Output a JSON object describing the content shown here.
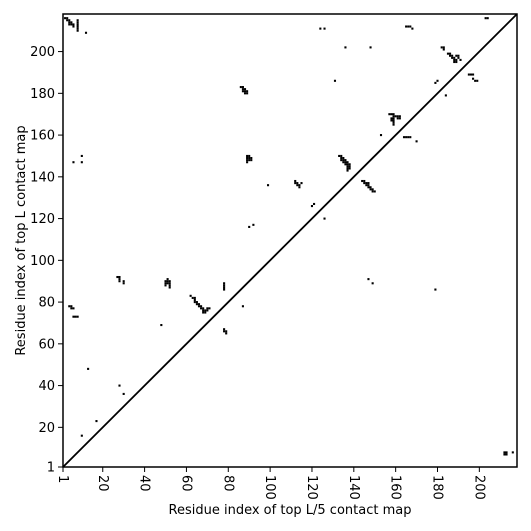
{
  "chart_data": {
    "type": "heatmap",
    "xlabel": "Residue index of top L/5 contact map",
    "ylabel": "Residue index of top L contact map",
    "xlim": [
      1,
      218
    ],
    "ylim": [
      1,
      218
    ],
    "xticks": [
      1,
      20,
      40,
      60,
      80,
      100,
      120,
      140,
      160,
      180,
      200
    ],
    "yticks": [
      1,
      20,
      40,
      60,
      80,
      100,
      120,
      140,
      160,
      180,
      200
    ],
    "grid": false,
    "diagonal": true,
    "colors": {
      "contact": "#000000",
      "background": "#ffffff"
    },
    "contacts": [
      [
        2,
        216
      ],
      [
        3,
        216
      ],
      [
        3,
        215
      ],
      [
        4,
        215
      ],
      [
        4,
        214
      ],
      [
        5,
        214
      ],
      [
        5,
        213
      ],
      [
        6,
        213
      ],
      [
        6,
        212
      ],
      [
        4,
        213
      ],
      [
        8,
        215
      ],
      [
        8,
        214
      ],
      [
        8,
        213
      ],
      [
        8,
        212
      ],
      [
        8,
        211
      ],
      [
        8,
        210
      ],
      [
        12,
        209
      ],
      [
        6,
        147
      ],
      [
        10,
        147
      ],
      [
        10,
        150
      ],
      [
        4,
        78
      ],
      [
        5,
        78
      ],
      [
        5,
        77
      ],
      [
        6,
        77
      ],
      [
        6,
        73
      ],
      [
        7,
        73
      ],
      [
        8,
        73
      ],
      [
        10,
        16
      ],
      [
        13,
        48
      ],
      [
        17,
        23
      ],
      [
        27,
        92
      ],
      [
        28,
        92
      ],
      [
        28,
        91
      ],
      [
        28,
        90
      ],
      [
        30,
        90
      ],
      [
        30,
        89
      ],
      [
        28,
        40
      ],
      [
        30,
        36
      ],
      [
        48,
        69
      ],
      [
        50,
        90
      ],
      [
        50,
        89
      ],
      [
        50,
        88
      ],
      [
        51,
        91
      ],
      [
        51,
        90
      ],
      [
        51,
        89
      ],
      [
        52,
        90
      ],
      [
        52,
        89
      ],
      [
        52,
        88
      ],
      [
        52,
        87
      ],
      [
        62,
        83
      ],
      [
        63,
        82
      ],
      [
        64,
        82
      ],
      [
        64,
        81
      ],
      [
        64,
        80
      ],
      [
        65,
        80
      ],
      [
        65,
        79
      ],
      [
        66,
        79
      ],
      [
        66,
        78
      ],
      [
        67,
        78
      ],
      [
        67,
        77
      ],
      [
        68,
        77
      ],
      [
        68,
        76
      ],
      [
        69,
        76
      ],
      [
        69,
        75
      ],
      [
        70,
        77
      ],
      [
        70,
        76
      ],
      [
        71,
        77
      ],
      [
        68,
        75
      ],
      [
        78,
        89
      ],
      [
        78,
        88
      ],
      [
        78,
        87
      ],
      [
        78,
        86
      ],
      [
        78,
        67
      ],
      [
        78,
        66
      ],
      [
        79,
        66
      ],
      [
        79,
        65
      ],
      [
        87,
        78
      ],
      [
        86,
        183
      ],
      [
        87,
        183
      ],
      [
        87,
        182
      ],
      [
        87,
        181
      ],
      [
        88,
        182
      ],
      [
        88,
        181
      ],
      [
        88,
        180
      ],
      [
        89,
        181
      ],
      [
        89,
        180
      ],
      [
        89,
        150
      ],
      [
        89,
        149
      ],
      [
        89,
        148
      ],
      [
        89,
        147
      ],
      [
        90,
        150
      ],
      [
        90,
        149
      ],
      [
        90,
        148
      ],
      [
        91,
        149
      ],
      [
        91,
        148
      ],
      [
        90,
        116
      ],
      [
        92,
        117
      ],
      [
        99,
        136
      ],
      [
        112,
        138
      ],
      [
        112,
        137
      ],
      [
        113,
        137
      ],
      [
        113,
        136
      ],
      [
        114,
        136
      ],
      [
        114,
        135
      ],
      [
        115,
        137
      ],
      [
        120,
        126
      ],
      [
        121,
        127
      ],
      [
        126,
        120
      ],
      [
        124,
        211
      ],
      [
        126,
        211
      ],
      [
        131,
        186
      ],
      [
        136,
        202
      ],
      [
        133,
        150
      ],
      [
        134,
        150
      ],
      [
        134,
        149
      ],
      [
        134,
        148
      ],
      [
        135,
        149
      ],
      [
        135,
        148
      ],
      [
        135,
        147
      ],
      [
        136,
        148
      ],
      [
        136,
        147
      ],
      [
        136,
        146
      ],
      [
        137,
        147
      ],
      [
        137,
        146
      ],
      [
        137,
        145
      ],
      [
        137,
        144
      ],
      [
        138,
        146
      ],
      [
        138,
        145
      ],
      [
        138,
        144
      ],
      [
        137,
        143
      ],
      [
        144,
        138
      ],
      [
        145,
        138
      ],
      [
        145,
        137
      ],
      [
        146,
        137
      ],
      [
        146,
        136
      ],
      [
        147,
        136
      ],
      [
        147,
        135
      ],
      [
        148,
        135
      ],
      [
        148,
        134
      ],
      [
        149,
        134
      ],
      [
        149,
        133
      ],
      [
        150,
        133
      ],
      [
        147,
        137
      ],
      [
        147,
        91
      ],
      [
        149,
        89
      ],
      [
        148,
        202
      ],
      [
        153,
        160
      ],
      [
        157,
        170
      ],
      [
        158,
        170
      ],
      [
        159,
        170
      ],
      [
        159,
        169
      ],
      [
        159,
        168
      ],
      [
        159,
        167
      ],
      [
        159,
        166
      ],
      [
        159,
        165
      ],
      [
        158,
        168
      ],
      [
        158,
        167
      ],
      [
        160,
        169
      ],
      [
        161,
        169
      ],
      [
        161,
        168
      ],
      [
        162,
        168
      ],
      [
        162,
        169
      ],
      [
        164,
        159
      ],
      [
        165,
        159
      ],
      [
        166,
        159
      ],
      [
        167,
        159
      ],
      [
        170,
        157
      ],
      [
        165,
        212
      ],
      [
        166,
        212
      ],
      [
        167,
        212
      ],
      [
        168,
        211
      ],
      [
        179,
        86
      ],
      [
        179,
        185
      ],
      [
        180,
        186
      ],
      [
        182,
        202
      ],
      [
        183,
        202
      ],
      [
        183,
        201
      ],
      [
        184,
        179
      ],
      [
        185,
        199
      ],
      [
        186,
        199
      ],
      [
        186,
        198
      ],
      [
        187,
        198
      ],
      [
        187,
        197
      ],
      [
        188,
        197
      ],
      [
        188,
        196
      ],
      [
        188,
        195
      ],
      [
        189,
        196
      ],
      [
        189,
        198
      ],
      [
        190,
        198
      ],
      [
        190,
        197
      ],
      [
        191,
        196
      ],
      [
        189,
        195
      ],
      [
        195,
        189
      ],
      [
        196,
        189
      ],
      [
        197,
        189
      ],
      [
        197,
        187
      ],
      [
        198,
        186
      ],
      [
        199,
        186
      ],
      [
        203,
        216
      ],
      [
        204,
        216
      ],
      [
        212,
        8
      ],
      [
        213,
        8
      ],
      [
        213,
        7
      ],
      [
        212,
        7
      ],
      [
        216,
        8
      ]
    ]
  }
}
